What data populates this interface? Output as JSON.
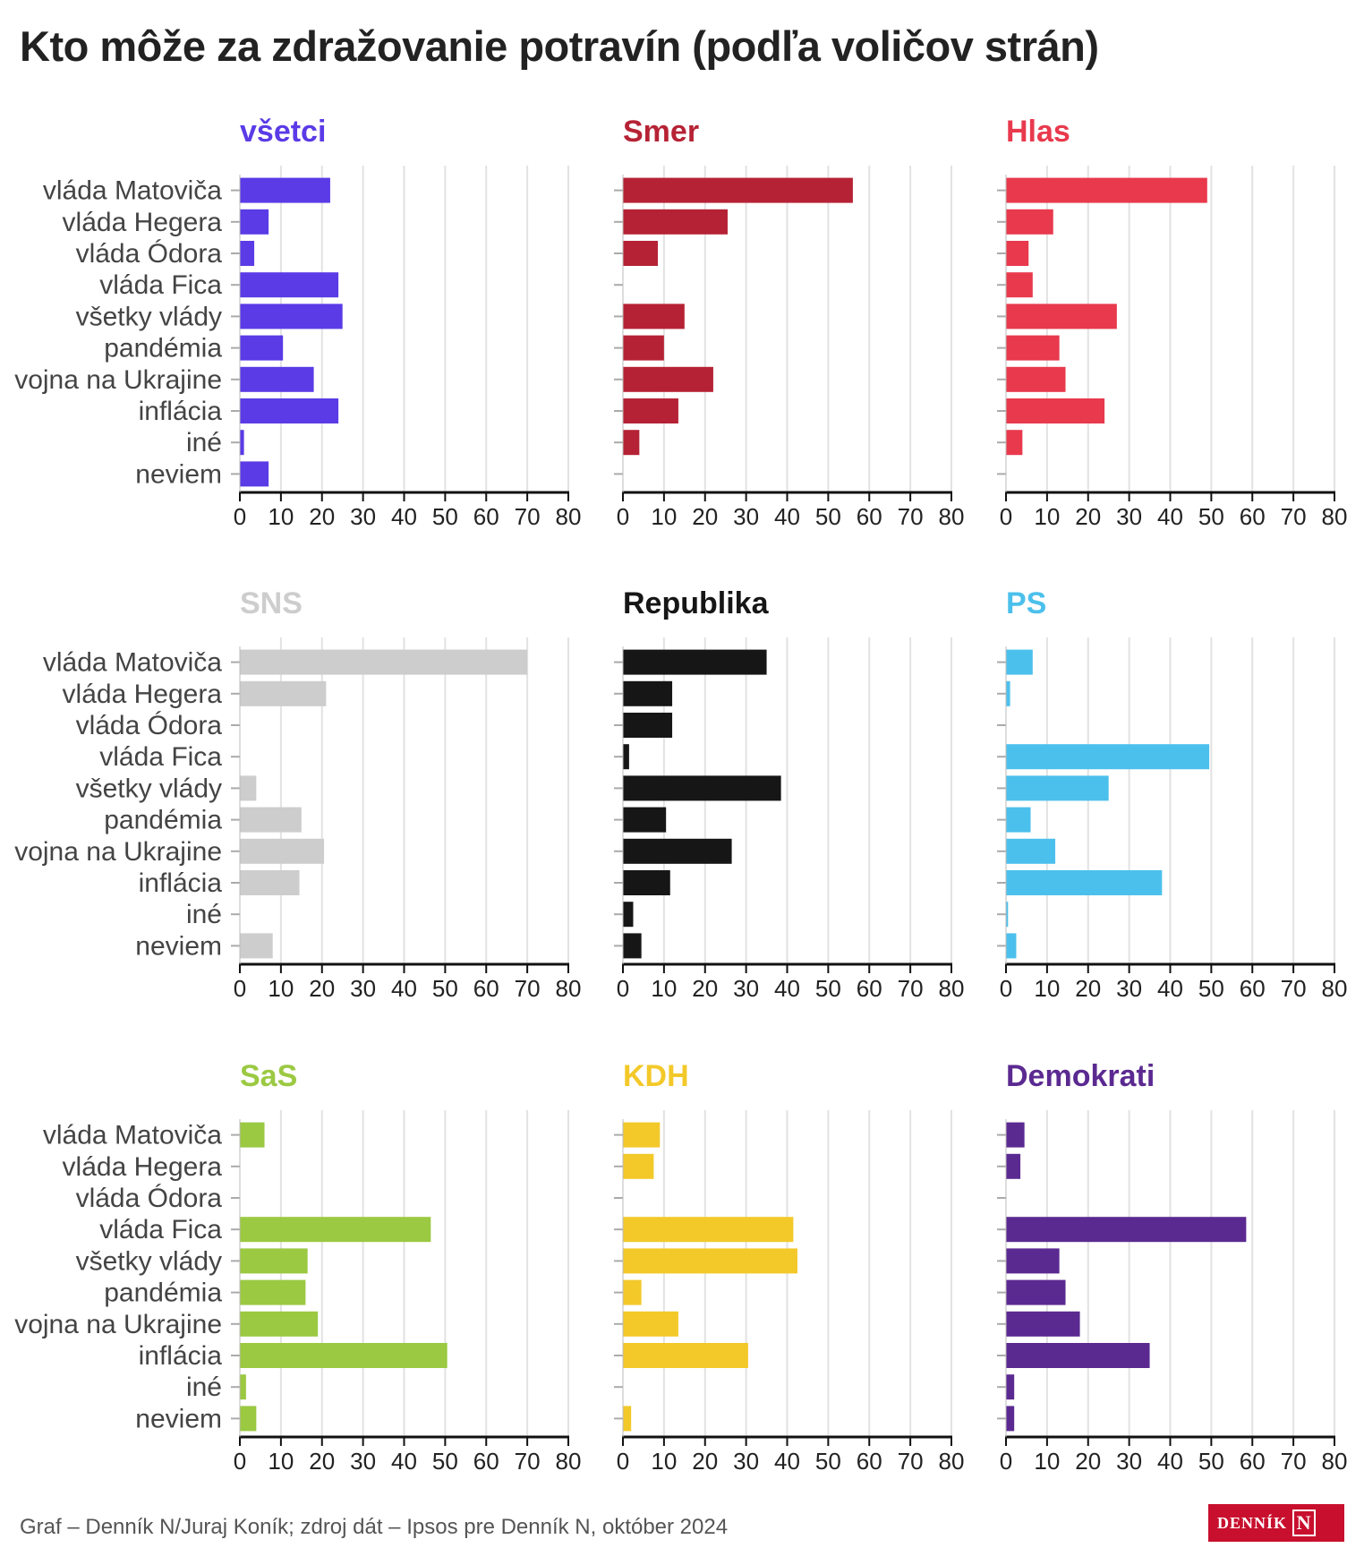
{
  "title": "Kto môže za zdražovanie potravín (podľa voličov strán)",
  "footer": "Graf – Denník N/Juraj Koník; zdroj dát – Ipsos pre Denník N, október 2024",
  "logo": {
    "text": "DENNÍK",
    "mark": "N"
  },
  "colors": {
    "gridline": "#e2e2e2",
    "axis": "#111111",
    "label": "#444444"
  },
  "chart_data": [
    {
      "type": "bar",
      "orientation": "horizontal",
      "title": "všetci",
      "color": "#5a3be6",
      "categories": [
        "vláda Matoviča",
        "vláda Hegera",
        "vláda Ódora",
        "vláda Fica",
        "všetky vlády",
        "pandémia",
        "vojna na Ukrajine",
        "inflácia",
        "iné",
        "neviem"
      ],
      "values": [
        22,
        7,
        3.5,
        24,
        25,
        10.5,
        18,
        24,
        1,
        7
      ],
      "xlim": [
        0,
        80
      ],
      "xticks": [
        0,
        10,
        20,
        30,
        40,
        50,
        60,
        70,
        80
      ]
    },
    {
      "type": "bar",
      "orientation": "horizontal",
      "title": "Smer",
      "color": "#b62235",
      "categories": [
        "vláda Matoviča",
        "vláda Hegera",
        "vláda Ódora",
        "vláda Fica",
        "všetky vlády",
        "pandémia",
        "vojna na Ukrajine",
        "inflácia",
        "iné",
        "neviem"
      ],
      "values": [
        56,
        25.5,
        8.5,
        0,
        15,
        10,
        22,
        13.5,
        4,
        0
      ],
      "xlim": [
        0,
        80
      ],
      "xticks": [
        0,
        10,
        20,
        30,
        40,
        50,
        60,
        70,
        80
      ]
    },
    {
      "type": "bar",
      "orientation": "horizontal",
      "title": "Hlas",
      "color": "#e8394d",
      "categories": [
        "vláda Matoviča",
        "vláda Hegera",
        "vláda Ódora",
        "vláda Fica",
        "všetky vlády",
        "pandémia",
        "vojna na Ukrajine",
        "inflácia",
        "iné",
        "neviem"
      ],
      "values": [
        49,
        11.5,
        5.5,
        6.5,
        27,
        13,
        14.5,
        24,
        4,
        0
      ],
      "xlim": [
        0,
        80
      ],
      "xticks": [
        0,
        10,
        20,
        30,
        40,
        50,
        60,
        70,
        80
      ]
    },
    {
      "type": "bar",
      "orientation": "horizontal",
      "title": "SNS",
      "color": "#cdcdcd",
      "categories": [
        "vláda Matoviča",
        "vláda Hegera",
        "vláda Ódora",
        "vláda Fica",
        "všetky vlády",
        "pandémia",
        "vojna na Ukrajine",
        "inflácia",
        "iné",
        "neviem"
      ],
      "values": [
        70,
        21,
        0,
        0,
        4,
        15,
        20.5,
        14.5,
        0,
        8
      ],
      "xlim": [
        0,
        80
      ],
      "xticks": [
        0,
        10,
        20,
        30,
        40,
        50,
        60,
        70,
        80
      ]
    },
    {
      "type": "bar",
      "orientation": "horizontal",
      "title": "Republika",
      "color": "#161616",
      "categories": [
        "vláda Matoviča",
        "vláda Hegera",
        "vláda Ódora",
        "vláda Fica",
        "všetky vlády",
        "pandémia",
        "vojna na Ukrajine",
        "inflácia",
        "iné",
        "neviem"
      ],
      "values": [
        35,
        12,
        12,
        1.5,
        38.5,
        10.5,
        26.5,
        11.5,
        2.5,
        4.5
      ],
      "xlim": [
        0,
        80
      ],
      "xticks": [
        0,
        10,
        20,
        30,
        40,
        50,
        60,
        70,
        80
      ]
    },
    {
      "type": "bar",
      "orientation": "horizontal",
      "title": "PS",
      "color": "#4cc0ec",
      "categories": [
        "vláda Matoviča",
        "vláda Hegera",
        "vláda Ódora",
        "vláda Fica",
        "všetky vlády",
        "pandémia",
        "vojna na Ukrajine",
        "inflácia",
        "iné",
        "neviem"
      ],
      "values": [
        6.5,
        1,
        0,
        49.5,
        25,
        6,
        12,
        38,
        0.5,
        2.5
      ],
      "xlim": [
        0,
        80
      ],
      "xticks": [
        0,
        10,
        20,
        30,
        40,
        50,
        60,
        70,
        80
      ]
    },
    {
      "type": "bar",
      "orientation": "horizontal",
      "title": "SaS",
      "color": "#9bc942",
      "categories": [
        "vláda Matoviča",
        "vláda Hegera",
        "vláda Ódora",
        "vláda Fica",
        "všetky vlády",
        "pandémia",
        "vojna na Ukrajine",
        "inflácia",
        "iné",
        "neviem"
      ],
      "values": [
        6,
        0,
        0,
        46.5,
        16.5,
        16,
        19,
        50.5,
        1.5,
        4
      ],
      "xlim": [
        0,
        80
      ],
      "xticks": [
        0,
        10,
        20,
        30,
        40,
        50,
        60,
        70,
        80
      ]
    },
    {
      "type": "bar",
      "orientation": "horizontal",
      "title": "KDH",
      "color": "#f3c92a",
      "categories": [
        "vláda Matoviča",
        "vláda Hegera",
        "vláda Ódora",
        "vláda Fica",
        "všetky vlády",
        "pandémia",
        "vojna na Ukrajine",
        "inflácia",
        "iné",
        "neviem"
      ],
      "values": [
        9,
        7.5,
        0,
        41.5,
        42.5,
        4.5,
        13.5,
        30.5,
        0,
        2
      ],
      "xlim": [
        0,
        80
      ],
      "xticks": [
        0,
        10,
        20,
        30,
        40,
        50,
        60,
        70,
        80
      ]
    },
    {
      "type": "bar",
      "orientation": "horizontal",
      "title": "Demokrati",
      "color": "#5b2a91",
      "categories": [
        "vláda Matoviča",
        "vláda Hegera",
        "vláda Ódora",
        "vláda Fica",
        "všetky vlády",
        "pandémia",
        "vojna na Ukrajine",
        "inflácia",
        "iné",
        "neviem"
      ],
      "values": [
        4.5,
        3.5,
        0,
        58.5,
        13,
        14.5,
        18,
        35,
        2,
        2
      ],
      "xlim": [
        0,
        80
      ],
      "xticks": [
        0,
        10,
        20,
        30,
        40,
        50,
        60,
        70,
        80
      ]
    }
  ]
}
